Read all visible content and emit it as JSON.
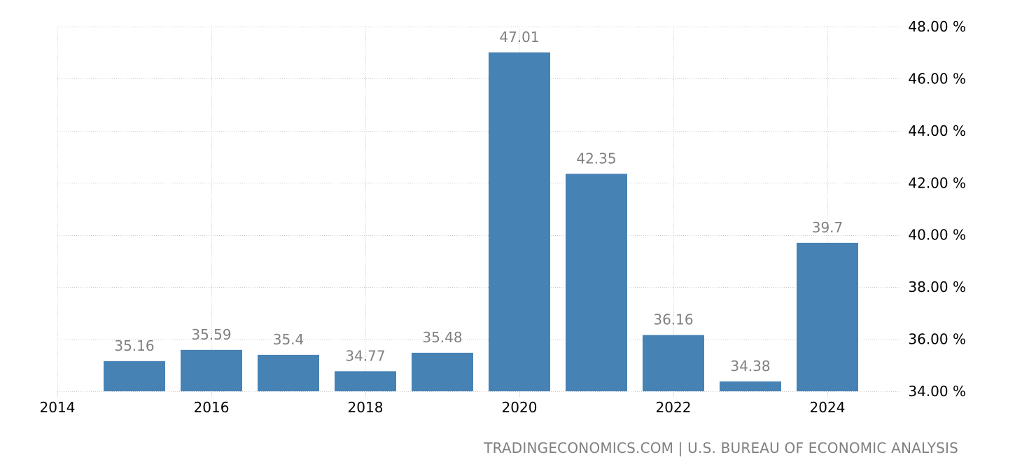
{
  "chart_data": {
    "type": "bar",
    "title": "",
    "xlabel": "",
    "ylabel": "",
    "categories": [
      "2015",
      "2016",
      "2017",
      "2018",
      "2019",
      "2020",
      "2021",
      "2022",
      "2023",
      "2024"
    ],
    "values": [
      35.16,
      35.59,
      35.4,
      34.77,
      35.48,
      47.01,
      42.35,
      36.16,
      34.38,
      39.7
    ],
    "data_labels": [
      "35.16",
      "35.59",
      "35.4",
      "34.77",
      "35.48",
      "47.01",
      "42.35",
      "36.16",
      "34.38",
      "39.7"
    ],
    "ylim": [
      34,
      48
    ],
    "y_ticks": [
      34,
      36,
      38,
      40,
      42,
      44,
      46,
      48
    ],
    "y_tick_labels": [
      "34.00 %",
      "36.00 %",
      "38.00 %",
      "40.00 %",
      "42.00 %",
      "44.00 %",
      "46.00 %",
      "48.00 %"
    ],
    "y_axis_position": "right",
    "x_ticks": [
      "2014",
      "2016",
      "2018",
      "2020",
      "2022",
      "2024"
    ],
    "xlim": [
      2014,
      2025
    ],
    "grid": true,
    "bar_color": "#4682b4",
    "legend": null
  },
  "source": {
    "text": "TRADINGECONOMICS.COM | U.S. BUREAU OF ECONOMIC ANALYSIS"
  }
}
